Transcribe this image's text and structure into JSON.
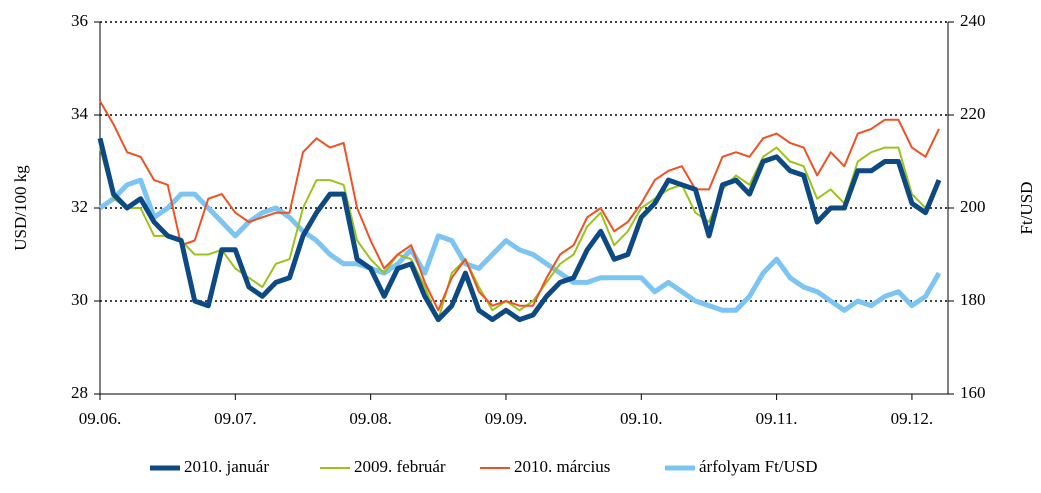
{
  "chart_data": {
    "type": "line",
    "y_label": "USD/100 kg",
    "y2_label": "Ft/USD",
    "categories": [
      "09.06.",
      null,
      null,
      null,
      null,
      null,
      null,
      null,
      null,
      null,
      "09.07.",
      null,
      null,
      null,
      null,
      null,
      null,
      null,
      null,
      null,
      "09.08.",
      null,
      null,
      null,
      null,
      null,
      null,
      null,
      null,
      null,
      "09.09.",
      null,
      null,
      null,
      null,
      null,
      null,
      null,
      null,
      null,
      "09.10.",
      null,
      null,
      null,
      null,
      null,
      null,
      null,
      null,
      null,
      "09.11.",
      null,
      null,
      null,
      null,
      null,
      null,
      null,
      null,
      null,
      "09.12.",
      null,
      null
    ],
    "ylim": [
      28,
      36
    ],
    "yticks": [
      28,
      30,
      32,
      34,
      36
    ],
    "y2lim": [
      160,
      240
    ],
    "y2ticks": [
      160,
      180,
      200,
      220,
      240
    ],
    "grid": true,
    "legend": "bottom",
    "series": [
      {
        "name": "2010. január",
        "color": "#0d4a84",
        "values": [
          33.5,
          32.3,
          32.0,
          32.2,
          31.7,
          31.4,
          31.3,
          30.0,
          29.9,
          31.1,
          31.1,
          30.3,
          30.1,
          30.4,
          30.5,
          31.4,
          31.9,
          32.3,
          32.3,
          30.9,
          30.7,
          30.1,
          30.7,
          30.8,
          30.1,
          29.6,
          29.9,
          30.6,
          29.8,
          29.6,
          29.8,
          29.6,
          29.7,
          30.1,
          30.4,
          30.5,
          31.1,
          31.5,
          30.9,
          31.0,
          31.8,
          32.1,
          32.6,
          32.5,
          32.4,
          31.4,
          32.5,
          32.6,
          32.3,
          33.0,
          33.1,
          32.8,
          32.7,
          31.7,
          32.0,
          32.0,
          32.8,
          32.8,
          33.0,
          33.0,
          32.1,
          31.9,
          32.6
        ]
      },
      {
        "name": "2009. február",
        "color": "#9cc31c",
        "values": [
          33.3,
          32.2,
          32.0,
          32.0,
          31.4,
          31.4,
          31.3,
          31.0,
          31.0,
          31.1,
          30.7,
          30.5,
          30.3,
          30.8,
          30.9,
          32.0,
          32.6,
          32.6,
          32.5,
          31.3,
          30.9,
          30.6,
          31.0,
          30.9,
          30.3,
          29.6,
          30.6,
          30.9,
          30.3,
          29.8,
          30.0,
          29.8,
          30.0,
          30.4,
          30.8,
          31.0,
          31.6,
          31.9,
          31.2,
          31.5,
          32.0,
          32.2,
          32.4,
          32.5,
          31.9,
          31.7,
          32.4,
          32.7,
          32.5,
          33.1,
          33.3,
          33.0,
          32.9,
          32.2,
          32.4,
          32.1,
          33.0,
          33.2,
          33.3,
          33.3,
          32.3,
          32.0,
          32.6
        ]
      },
      {
        "name": "2010. március",
        "color": "#ee5224",
        "values": [
          34.3,
          33.8,
          33.2,
          33.1,
          32.6,
          32.5,
          31.2,
          31.3,
          32.2,
          32.3,
          31.9,
          31.7,
          31.8,
          31.9,
          31.9,
          33.2,
          33.5,
          33.3,
          33.4,
          32.0,
          31.3,
          30.7,
          31.0,
          31.2,
          30.4,
          29.8,
          30.5,
          30.9,
          30.2,
          29.9,
          30.0,
          29.9,
          29.9,
          30.5,
          31.0,
          31.2,
          31.8,
          32.0,
          31.5,
          31.7,
          32.1,
          32.6,
          32.8,
          32.9,
          32.4,
          32.4,
          33.1,
          33.2,
          33.1,
          33.5,
          33.6,
          33.4,
          33.3,
          32.7,
          33.2,
          32.9,
          33.6,
          33.7,
          33.9,
          33.9,
          33.3,
          33.1,
          33.7
        ]
      },
      {
        "name": "árfolyam Ft/USD",
        "color": "#7cc4f2",
        "axis": "y2",
        "values": [
          200,
          202,
          205,
          206,
          198,
          200,
          203,
          203,
          200,
          197,
          194,
          197,
          199,
          200,
          198,
          195,
          193,
          190,
          188,
          188,
          187,
          186,
          188,
          191,
          186,
          194,
          193,
          188,
          187,
          190,
          193,
          191,
          190,
          188,
          186,
          184,
          184,
          185,
          185,
          185,
          185,
          182,
          184,
          182,
          180,
          179,
          178,
          178,
          181,
          186,
          189,
          185,
          183,
          182,
          180,
          178,
          180,
          179,
          181,
          182,
          179,
          181,
          186
        ]
      }
    ]
  }
}
